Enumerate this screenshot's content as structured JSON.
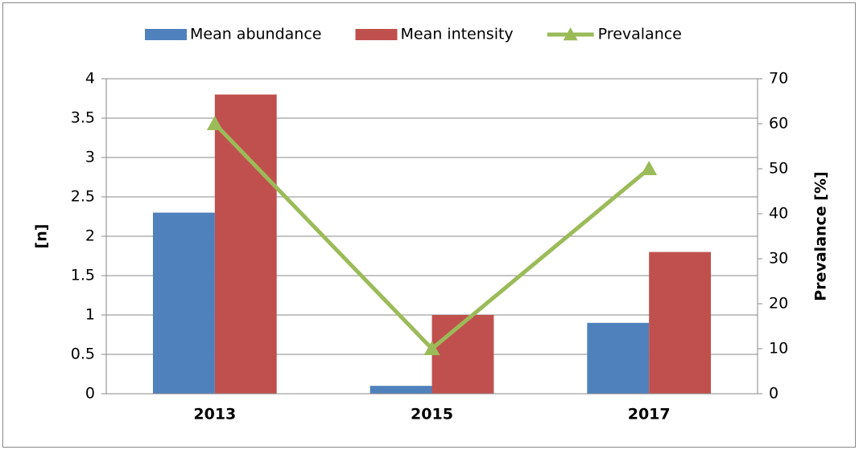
{
  "chart_data": {
    "type": "bar-line",
    "categories": [
      "2013",
      "2015",
      "2017"
    ],
    "series": [
      {
        "name": "Mean abundance",
        "type": "bar",
        "color": "#4f81bd",
        "values": [
          2.3,
          0.1,
          0.9
        ]
      },
      {
        "name": "Mean intensity",
        "type": "bar",
        "color": "#c0504d",
        "values": [
          3.8,
          1.0,
          1.8
        ]
      },
      {
        "name": "Prevalance",
        "type": "line",
        "axis": "y2",
        "color": "#9bbb59",
        "values": [
          60,
          10,
          50
        ]
      }
    ],
    "ylabel": "[n]",
    "y2label": "Prevalance [%]",
    "ylim": [
      0,
      4
    ],
    "yticks": [
      0,
      0.5,
      1,
      1.5,
      2,
      2.5,
      3,
      3.5,
      4
    ],
    "y2lim": [
      0,
      70
    ],
    "y2ticks": [
      0,
      10,
      20,
      30,
      40,
      50,
      60,
      70
    ],
    "grid": true,
    "legend": "top"
  }
}
